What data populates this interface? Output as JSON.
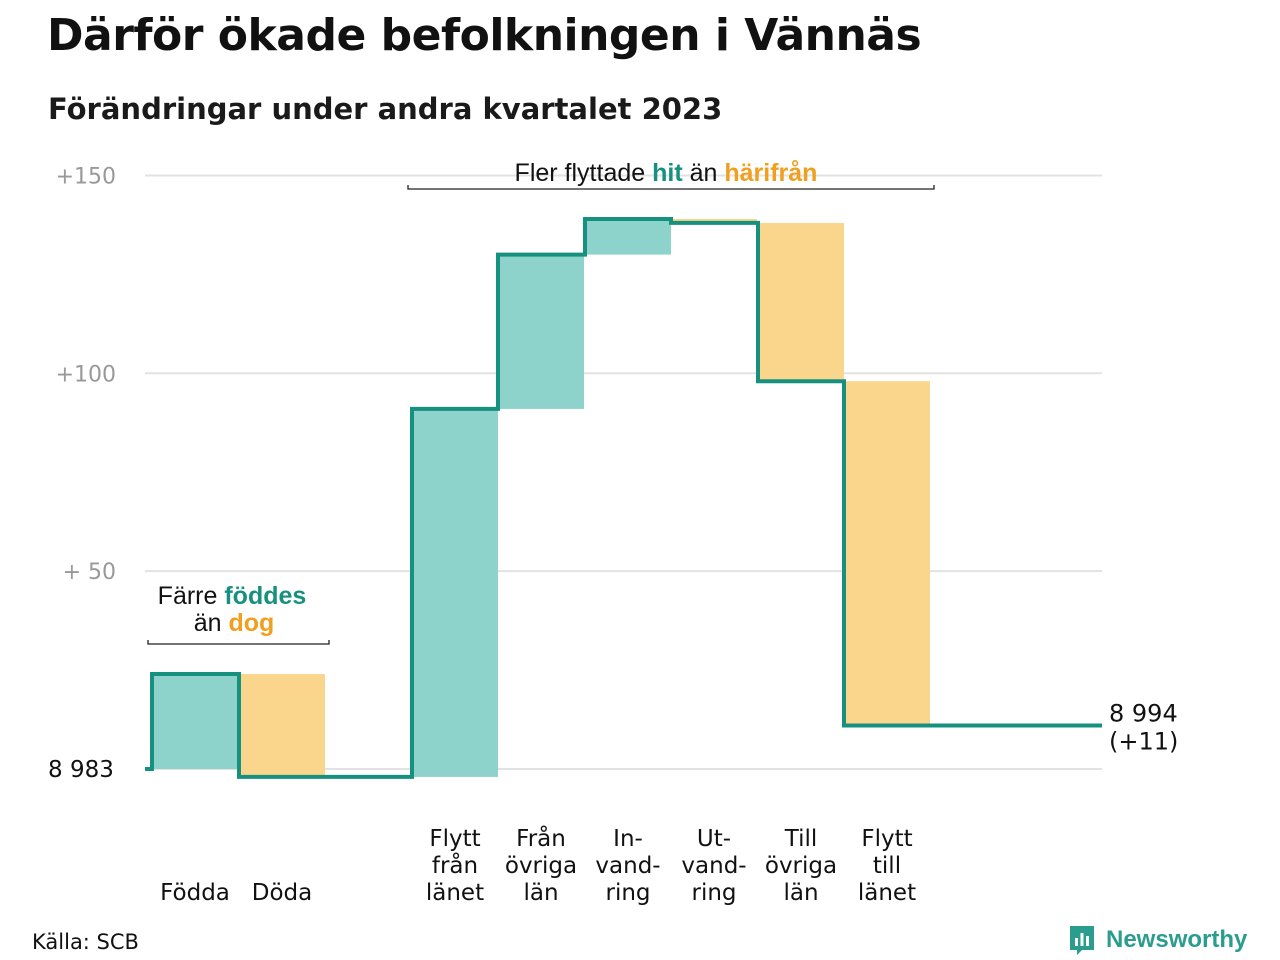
{
  "title": "Därför ökade befolkningen i Vännäs",
  "subtitle": "Förändringar under andra kvartalet 2023",
  "source": "Källa: SCB",
  "logo": {
    "text": "Newsworthy"
  },
  "colors": {
    "increase": "#8dd3cb",
    "decrease": "#fad58c",
    "line": "#16907f",
    "increase_text": "#16907f",
    "decrease_text": "#f0a01e",
    "grid": "#e2e2e2",
    "tick": "#999999"
  },
  "chart_data": {
    "type": "waterfall",
    "baseline": 8983,
    "baseline_label": "8  983",
    "end_label": [
      "8 994",
      "(+11)"
    ],
    "ylim": [
      0,
      150
    ],
    "yticks": [
      {
        "value": 50,
        "label": "+  50"
      },
      {
        "value": 100,
        "label": "+100"
      },
      {
        "value": 150,
        "label": "+150"
      }
    ],
    "categories": [
      {
        "label": [
          "Födda"
        ],
        "value": 24,
        "kind": "increase"
      },
      {
        "label": [
          "Döda"
        ],
        "value": -26,
        "kind": "decrease"
      },
      {
        "label": [
          "Flytt",
          "från",
          "länet"
        ],
        "value": 93,
        "kind": "increase"
      },
      {
        "label": [
          "Från",
          "övriga",
          "län"
        ],
        "value": 39,
        "kind": "increase"
      },
      {
        "label": [
          "In-",
          "vand-",
          "ring"
        ],
        "value": 9,
        "kind": "increase"
      },
      {
        "label": [
          "Ut-",
          "vand-",
          "ring"
        ],
        "value": -1,
        "kind": "decrease"
      },
      {
        "label": [
          "Till",
          "övriga",
          "län"
        ],
        "value": -40,
        "kind": "decrease"
      },
      {
        "label": [
          "Flytt",
          "till",
          "länet"
        ],
        "value": -87,
        "kind": "decrease"
      }
    ],
    "annotations": [
      {
        "group": "births",
        "line1": [
          {
            "text": "Färre ",
            "style": "plain"
          },
          {
            "text": "föddes",
            "style": "increase"
          }
        ],
        "line2": [
          {
            "text": "än ",
            "style": "plain"
          },
          {
            "text": "dog",
            "style": "decrease"
          }
        ]
      },
      {
        "group": "migration",
        "line1": [
          {
            "text": "Fler flyttade ",
            "style": "plain"
          },
          {
            "text": "hit",
            "style": "increase"
          },
          {
            "text": " än ",
            "style": "plain"
          },
          {
            "text": "härifrån",
            "style": "decrease"
          }
        ]
      }
    ]
  }
}
